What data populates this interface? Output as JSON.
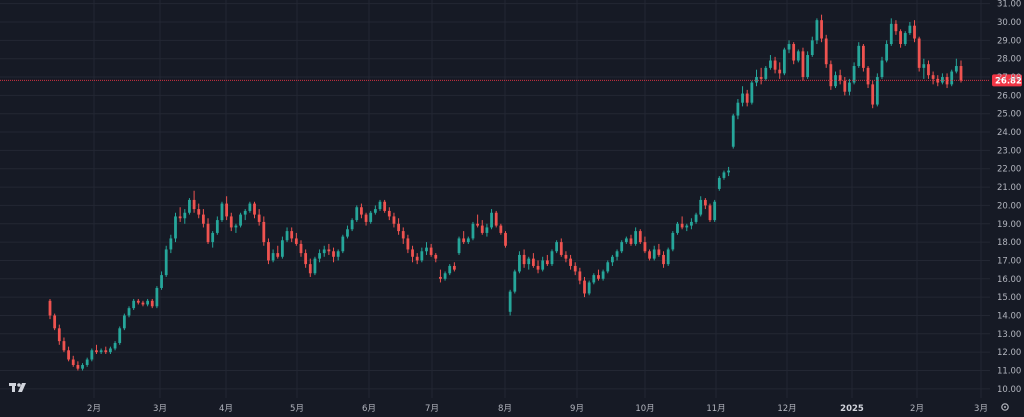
{
  "colors": {
    "background": "#161a25",
    "up": "#26a69a",
    "down": "#ef5350",
    "last_price": "#f23645",
    "grid": "#232733",
    "text": "#b2b5be"
  },
  "icons": {
    "logo": "tradingview-logo-icon",
    "settings": "gear-icon"
  },
  "chart_data": {
    "type": "candlestick",
    "title": "",
    "y_axis": {
      "position": "right",
      "ylim": [
        9.5,
        31.2
      ],
      "tick_labels": [
        "10.00",
        "11.00",
        "12.00",
        "13.00",
        "14.00",
        "15.00",
        "16.00",
        "17.00",
        "18.00",
        "19.00",
        "20.00",
        "21.00",
        "22.00",
        "23.00",
        "24.00",
        "25.00",
        "26.00",
        "27.00",
        "28.00",
        "29.00",
        "30.00",
        "31.00"
      ]
    },
    "x_axis": {
      "tick_labels": [
        {
          "label": "2月",
          "bold": false
        },
        {
          "label": "3月",
          "bold": false
        },
        {
          "label": "4月",
          "bold": false
        },
        {
          "label": "5月",
          "bold": false
        },
        {
          "label": "6月",
          "bold": false
        },
        {
          "label": "7月",
          "bold": false
        },
        {
          "label": "8月",
          "bold": false
        },
        {
          "label": "9月",
          "bold": false
        },
        {
          "label": "10月",
          "bold": false
        },
        {
          "label": "11月",
          "bold": false
        },
        {
          "label": "12月",
          "bold": false
        },
        {
          "label": "2025",
          "bold": true
        },
        {
          "label": "2月",
          "bold": false
        },
        {
          "label": "3月",
          "bold": false
        }
      ]
    },
    "last_price": "26.82",
    "grid": true,
    "candles": [
      [
        14.8,
        14.9,
        13.8,
        14.0
      ],
      [
        14.0,
        14.1,
        13.2,
        13.3
      ],
      [
        13.3,
        13.5,
        12.4,
        12.6
      ],
      [
        12.6,
        12.8,
        12.0,
        12.1
      ],
      [
        12.1,
        12.3,
        11.5,
        11.6
      ],
      [
        11.6,
        11.8,
        11.2,
        11.3
      ],
      [
        11.3,
        11.5,
        11.0,
        11.1
      ],
      [
        11.1,
        11.4,
        11.0,
        11.3
      ],
      [
        11.3,
        11.7,
        11.2,
        11.6
      ],
      [
        11.6,
        12.2,
        11.5,
        12.1
      ],
      [
        12.1,
        12.4,
        11.9,
        12.0
      ],
      [
        12.0,
        12.2,
        11.9,
        12.1
      ],
      [
        12.1,
        12.3,
        11.9,
        12.0
      ],
      [
        12.0,
        12.3,
        11.9,
        12.2
      ],
      [
        12.2,
        12.6,
        12.1,
        12.5
      ],
      [
        12.5,
        13.4,
        12.4,
        13.3
      ],
      [
        13.3,
        14.1,
        13.2,
        14.0
      ],
      [
        14.0,
        14.5,
        13.9,
        14.4
      ],
      [
        14.4,
        14.9,
        14.3,
        14.8
      ],
      [
        14.8,
        14.9,
        14.6,
        14.7
      ],
      [
        14.7,
        14.8,
        14.5,
        14.6
      ],
      [
        14.6,
        14.9,
        14.5,
        14.8
      ],
      [
        14.8,
        14.9,
        14.4,
        14.5
      ],
      [
        14.5,
        15.6,
        14.4,
        15.5
      ],
      [
        15.5,
        16.4,
        15.4,
        16.2
      ],
      [
        16.2,
        17.8,
        16.1,
        17.6
      ],
      [
        17.6,
        18.4,
        17.4,
        18.2
      ],
      [
        18.2,
        19.6,
        18.0,
        19.4
      ],
      [
        19.4,
        19.9,
        19.1,
        19.3
      ],
      [
        19.3,
        19.8,
        19.0,
        19.6
      ],
      [
        19.6,
        20.4,
        19.5,
        20.3
      ],
      [
        20.3,
        20.8,
        19.6,
        19.8
      ],
      [
        19.8,
        20.1,
        19.3,
        19.5
      ],
      [
        19.5,
        19.8,
        18.8,
        19.0
      ],
      [
        19.0,
        19.3,
        17.9,
        18.0
      ],
      [
        18.0,
        18.6,
        17.7,
        18.5
      ],
      [
        18.5,
        19.4,
        18.4,
        19.2
      ],
      [
        19.2,
        20.2,
        19.1,
        20.1
      ],
      [
        20.1,
        20.5,
        19.2,
        19.4
      ],
      [
        19.4,
        19.6,
        18.6,
        18.8
      ],
      [
        18.8,
        19.0,
        18.5,
        18.9
      ],
      [
        18.9,
        19.6,
        18.8,
        19.5
      ],
      [
        19.5,
        19.8,
        19.2,
        19.7
      ],
      [
        19.7,
        20.2,
        19.6,
        20.1
      ],
      [
        20.1,
        20.2,
        19.3,
        19.5
      ],
      [
        19.5,
        19.8,
        18.9,
        19.1
      ],
      [
        19.1,
        19.4,
        17.8,
        18.0
      ],
      [
        18.0,
        18.2,
        16.8,
        17.0
      ],
      [
        17.0,
        17.6,
        16.9,
        17.4
      ],
      [
        17.4,
        17.8,
        17.1,
        17.2
      ],
      [
        17.2,
        18.3,
        17.1,
        18.1
      ],
      [
        18.1,
        18.8,
        18.0,
        18.6
      ],
      [
        18.6,
        18.8,
        18.0,
        18.2
      ],
      [
        18.2,
        18.5,
        17.8,
        17.9
      ],
      [
        17.9,
        18.1,
        17.2,
        17.4
      ],
      [
        17.4,
        17.6,
        16.6,
        16.8
      ],
      [
        16.8,
        17.1,
        16.1,
        16.3
      ],
      [
        16.3,
        17.2,
        16.2,
        17.1
      ],
      [
        17.1,
        17.6,
        16.9,
        17.4
      ],
      [
        17.4,
        17.8,
        17.2,
        17.6
      ],
      [
        17.6,
        17.9,
        17.3,
        17.5
      ],
      [
        17.5,
        17.7,
        16.9,
        17.2
      ],
      [
        17.2,
        17.6,
        17.0,
        17.5
      ],
      [
        17.5,
        18.4,
        17.4,
        18.3
      ],
      [
        18.3,
        18.9,
        18.2,
        18.7
      ],
      [
        18.7,
        19.3,
        18.6,
        19.2
      ],
      [
        19.2,
        20.0,
        19.1,
        19.9
      ],
      [
        19.9,
        20.1,
        19.3,
        19.5
      ],
      [
        19.5,
        19.6,
        18.9,
        19.1
      ],
      [
        19.1,
        19.7,
        19.0,
        19.6
      ],
      [
        19.6,
        20.0,
        19.5,
        19.8
      ],
      [
        19.8,
        20.3,
        19.7,
        20.2
      ],
      [
        20.2,
        20.3,
        19.6,
        19.7
      ],
      [
        19.7,
        19.9,
        19.2,
        19.4
      ],
      [
        19.4,
        19.6,
        18.8,
        19.0
      ],
      [
        19.0,
        19.3,
        18.4,
        18.6
      ],
      [
        18.6,
        18.8,
        17.9,
        18.2
      ],
      [
        18.2,
        18.4,
        17.4,
        17.6
      ],
      [
        17.6,
        17.8,
        16.9,
        17.2
      ],
      [
        17.2,
        17.4,
        16.8,
        17.0
      ],
      [
        17.0,
        17.7,
        16.9,
        17.5
      ],
      [
        17.5,
        18.0,
        17.3,
        17.7
      ],
      [
        17.7,
        17.9,
        17.2,
        17.3
      ],
      [
        17.3,
        17.4,
        16.9,
        17.1
      ],
      [
        16.1,
        16.5,
        15.8,
        16.0
      ],
      [
        16.0,
        16.4,
        15.9,
        16.3
      ],
      [
        16.3,
        16.8,
        16.2,
        16.7
      ],
      [
        16.7,
        16.9,
        16.4,
        16.5
      ],
      [
        17.4,
        18.3,
        17.3,
        18.2
      ],
      [
        18.2,
        18.6,
        17.9,
        18.0
      ],
      [
        18.0,
        18.3,
        17.9,
        18.2
      ],
      [
        18.2,
        19.1,
        18.1,
        19.0
      ],
      [
        19.0,
        19.5,
        18.8,
        18.9
      ],
      [
        18.9,
        19.2,
        18.4,
        18.5
      ],
      [
        18.5,
        19.0,
        18.3,
        18.8
      ],
      [
        18.8,
        19.8,
        18.7,
        19.6
      ],
      [
        19.6,
        19.7,
        18.8,
        18.9
      ],
      [
        18.9,
        19.0,
        18.4,
        18.5
      ],
      [
        18.5,
        18.6,
        17.7,
        17.8
      ],
      [
        14.2,
        15.4,
        14.0,
        15.3
      ],
      [
        15.3,
        16.5,
        15.2,
        16.4
      ],
      [
        16.4,
        17.5,
        16.3,
        17.3
      ],
      [
        17.3,
        17.6,
        16.6,
        16.8
      ],
      [
        16.8,
        17.2,
        16.5,
        17.1
      ],
      [
        17.1,
        17.4,
        16.6,
        16.7
      ],
      [
        16.7,
        17.0,
        16.3,
        16.5
      ],
      [
        16.5,
        17.2,
        16.4,
        17.0
      ],
      [
        17.0,
        17.3,
        16.7,
        16.8
      ],
      [
        16.8,
        17.6,
        16.7,
        17.5
      ],
      [
        17.5,
        18.1,
        17.4,
        18.0
      ],
      [
        18.0,
        18.2,
        17.2,
        17.3
      ],
      [
        17.3,
        17.5,
        16.9,
        17.1
      ],
      [
        17.1,
        17.3,
        16.5,
        16.7
      ],
      [
        16.7,
        16.9,
        16.2,
        16.4
      ],
      [
        16.4,
        16.6,
        15.7,
        15.9
      ],
      [
        15.9,
        16.1,
        15.0,
        15.2
      ],
      [
        15.2,
        15.9,
        15.1,
        15.8
      ],
      [
        15.8,
        16.3,
        15.7,
        16.2
      ],
      [
        16.2,
        16.5,
        15.9,
        16.0
      ],
      [
        16.0,
        16.5,
        15.9,
        16.4
      ],
      [
        16.4,
        17.0,
        16.3,
        16.9
      ],
      [
        16.9,
        17.3,
        16.7,
        17.2
      ],
      [
        17.2,
        17.6,
        17.0,
        17.5
      ],
      [
        17.5,
        18.1,
        17.4,
        18.0
      ],
      [
        18.0,
        18.3,
        17.9,
        18.2
      ],
      [
        18.2,
        18.4,
        17.8,
        17.9
      ],
      [
        17.9,
        18.8,
        17.8,
        18.6
      ],
      [
        18.6,
        18.7,
        17.9,
        18.0
      ],
      [
        18.0,
        18.3,
        17.4,
        17.5
      ],
      [
        17.5,
        17.6,
        17.0,
        17.1
      ],
      [
        17.1,
        17.8,
        17.0,
        17.6
      ],
      [
        17.6,
        17.9,
        17.2,
        17.3
      ],
      [
        17.3,
        17.5,
        16.6,
        16.8
      ],
      [
        16.8,
        17.7,
        16.7,
        17.6
      ],
      [
        17.6,
        18.6,
        17.5,
        18.5
      ],
      [
        18.5,
        19.1,
        18.4,
        19.0
      ],
      [
        19.0,
        19.4,
        18.7,
        18.8
      ],
      [
        18.8,
        19.0,
        18.6,
        18.9
      ],
      [
        18.9,
        19.3,
        18.7,
        19.1
      ],
      [
        19.1,
        19.6,
        19.0,
        19.5
      ],
      [
        19.5,
        20.5,
        19.4,
        20.3
      ],
      [
        20.3,
        20.4,
        19.8,
        20.0
      ],
      [
        20.0,
        20.1,
        19.1,
        19.2
      ],
      [
        19.2,
        20.3,
        19.1,
        20.2
      ],
      [
        20.9,
        21.6,
        20.8,
        21.5
      ],
      [
        21.5,
        21.9,
        21.4,
        21.8
      ],
      [
        21.8,
        22.1,
        21.6,
        21.9
      ],
      [
        23.2,
        25.0,
        23.1,
        24.9
      ],
      [
        24.9,
        25.8,
        24.7,
        25.6
      ],
      [
        25.6,
        26.5,
        25.4,
        26.1
      ],
      [
        26.1,
        26.3,
        25.4,
        25.6
      ],
      [
        25.6,
        26.8,
        25.5,
        26.7
      ],
      [
        26.7,
        27.4,
        26.5,
        27.0
      ],
      [
        27.0,
        27.5,
        26.6,
        26.9
      ],
      [
        26.9,
        27.6,
        26.8,
        27.5
      ],
      [
        27.5,
        28.2,
        27.4,
        27.9
      ],
      [
        27.9,
        28.1,
        27.2,
        27.4
      ],
      [
        27.4,
        27.8,
        26.9,
        27.2
      ],
      [
        27.2,
        28.6,
        27.1,
        28.5
      ],
      [
        28.5,
        29.0,
        28.3,
        28.8
      ],
      [
        28.8,
        28.9,
        27.7,
        27.9
      ],
      [
        27.9,
        28.5,
        27.8,
        28.4
      ],
      [
        28.4,
        28.6,
        26.8,
        27.0
      ],
      [
        27.0,
        28.4,
        26.9,
        28.2
      ],
      [
        28.2,
        29.2,
        28.1,
        29.0
      ],
      [
        29.0,
        30.2,
        28.8,
        30.1
      ],
      [
        30.1,
        30.4,
        28.9,
        29.1
      ],
      [
        29.1,
        29.3,
        27.5,
        27.7
      ],
      [
        27.7,
        27.9,
        26.3,
        26.5
      ],
      [
        26.5,
        27.3,
        26.4,
        27.1
      ],
      [
        27.1,
        27.4,
        26.6,
        26.8
      ],
      [
        26.8,
        27.0,
        26.0,
        26.2
      ],
      [
        26.2,
        26.9,
        26.0,
        26.7
      ],
      [
        26.7,
        27.8,
        26.6,
        27.6
      ],
      [
        27.6,
        28.9,
        27.5,
        28.7
      ],
      [
        28.7,
        28.8,
        27.3,
        27.5
      ],
      [
        27.5,
        27.6,
        26.4,
        26.6
      ],
      [
        26.6,
        26.8,
        25.3,
        25.5
      ],
      [
        25.5,
        27.2,
        25.4,
        27.0
      ],
      [
        27.0,
        28.1,
        26.9,
        27.9
      ],
      [
        27.9,
        29.0,
        27.8,
        28.8
      ],
      [
        28.8,
        30.2,
        28.7,
        29.9
      ],
      [
        29.9,
        30.1,
        29.3,
        29.5
      ],
      [
        29.5,
        29.6,
        28.6,
        28.8
      ],
      [
        28.8,
        29.5,
        28.7,
        29.4
      ],
      [
        29.4,
        30.0,
        29.3,
        29.8
      ],
      [
        29.8,
        30.1,
        28.9,
        29.1
      ],
      [
        29.1,
        29.2,
        27.3,
        27.5
      ],
      [
        27.5,
        28.0,
        26.9,
        27.7
      ],
      [
        27.7,
        27.9,
        26.9,
        27.1
      ],
      [
        27.1,
        27.3,
        26.6,
        26.9
      ],
      [
        26.9,
        27.1,
        26.5,
        26.7
      ],
      [
        26.7,
        27.2,
        26.6,
        27.0
      ],
      [
        27.0,
        27.2,
        26.4,
        26.6
      ],
      [
        26.6,
        27.4,
        26.5,
        27.3
      ],
      [
        27.3,
        28.0,
        27.2,
        27.6
      ],
      [
        27.6,
        27.9,
        26.7,
        26.8
      ]
    ]
  }
}
